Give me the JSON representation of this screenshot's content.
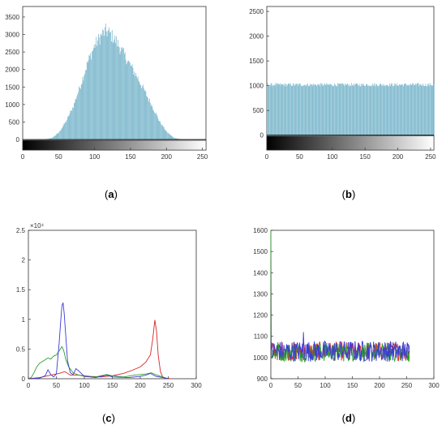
{
  "chart_data": [
    {
      "id": "a",
      "type": "bar",
      "caption": "a",
      "colorbar": true,
      "bar_color": "#73b3c9",
      "xlim": [
        0,
        255
      ],
      "ylim": [
        -300,
        3800
      ],
      "xticks": [
        0,
        50,
        100,
        150,
        200,
        250
      ],
      "yticks": [
        0,
        500,
        1000,
        1500,
        2000,
        2500,
        3000,
        3500
      ],
      "profile": [
        [
          0,
          0
        ],
        [
          20,
          0
        ],
        [
          30,
          5
        ],
        [
          40,
          40
        ],
        [
          50,
          200
        ],
        [
          60,
          520
        ],
        [
          70,
          950
        ],
        [
          80,
          1550
        ],
        [
          90,
          2200
        ],
        [
          100,
          2700
        ],
        [
          110,
          3000
        ],
        [
          115,
          3100
        ],
        [
          120,
          3050
        ],
        [
          130,
          2800
        ],
        [
          140,
          2450
        ],
        [
          150,
          2100
        ],
        [
          160,
          1750
        ],
        [
          170,
          1350
        ],
        [
          180,
          950
        ],
        [
          190,
          520
        ],
        [
          200,
          220
        ],
        [
          210,
          50
        ],
        [
          220,
          5
        ],
        [
          230,
          0
        ],
        [
          255,
          0
        ]
      ]
    },
    {
      "id": "b",
      "type": "bar",
      "caption": "b",
      "colorbar": true,
      "bar_color": "#73b3c9",
      "xlim": [
        0,
        255
      ],
      "ylim": [
        -300,
        2600
      ],
      "xticks": [
        0,
        50,
        100,
        150,
        200,
        250
      ],
      "yticks": [
        0,
        500,
        1000,
        1500,
        2000,
        2500
      ],
      "profile": [
        [
          0,
          1020
        ],
        [
          255,
          1020
        ]
      ],
      "jitter": 35
    },
    {
      "id": "c",
      "type": "line",
      "caption": "c",
      "xlim": [
        0,
        300
      ],
      "ylim": [
        0,
        25000
      ],
      "xticks": [
        0,
        50,
        100,
        150,
        200,
        250,
        300
      ],
      "yticks": [
        0,
        5000,
        10000,
        15000,
        20000,
        25000
      ],
      "ytick_labels": [
        "0",
        "0.5",
        "1",
        "1.5",
        "2",
        "2.5"
      ],
      "y_multiplier": "×10⁴",
      "series": [
        {
          "color": "#d62728",
          "points": [
            [
              0,
              0
            ],
            [
              20,
              200
            ],
            [
              40,
              600
            ],
            [
              55,
              900
            ],
            [
              65,
              1200
            ],
            [
              75,
              600
            ],
            [
              90,
              600
            ],
            [
              110,
              400
            ],
            [
              130,
              300
            ],
            [
              150,
              500
            ],
            [
              170,
              900
            ],
            [
              185,
              1400
            ],
            [
              200,
              2000
            ],
            [
              210,
              2800
            ],
            [
              218,
              4000
            ],
            [
              222,
              6500
            ],
            [
              226,
              9900
            ],
            [
              229,
              8000
            ],
            [
              232,
              4000
            ],
            [
              236,
              1200
            ],
            [
              240,
              300
            ],
            [
              245,
              50
            ],
            [
              255,
              0
            ]
          ]
        },
        {
          "color": "#2ca02c",
          "points": [
            [
              0,
              0
            ],
            [
              5,
              200
            ],
            [
              10,
              1000
            ],
            [
              15,
              2000
            ],
            [
              20,
              2600
            ],
            [
              25,
              2900
            ],
            [
              30,
              3200
            ],
            [
              35,
              3500
            ],
            [
              40,
              3300
            ],
            [
              45,
              3800
            ],
            [
              50,
              4000
            ],
            [
              55,
              4700
            ],
            [
              60,
              5400
            ],
            [
              63,
              4800
            ],
            [
              67,
              3200
            ],
            [
              72,
              2000
            ],
            [
              80,
              1000
            ],
            [
              90,
              600
            ],
            [
              100,
              400
            ],
            [
              120,
              300
            ],
            [
              140,
              700
            ],
            [
              150,
              500
            ],
            [
              170,
              300
            ],
            [
              190,
              600
            ],
            [
              210,
              800
            ],
            [
              220,
              1000
            ],
            [
              230,
              600
            ],
            [
              240,
              300
            ],
            [
              250,
              0
            ]
          ]
        },
        {
          "color": "#3b3bd8",
          "points": [
            [
              0,
              0
            ],
            [
              20,
              100
            ],
            [
              30,
              500
            ],
            [
              35,
              1500
            ],
            [
              40,
              700
            ],
            [
              45,
              300
            ],
            [
              50,
              800
            ],
            [
              55,
              6000
            ],
            [
              58,
              10000
            ],
            [
              60,
              12300
            ],
            [
              62,
              12800
            ],
            [
              64,
              11000
            ],
            [
              67,
              7000
            ],
            [
              70,
              3000
            ],
            [
              75,
              1000
            ],
            [
              80,
              700
            ],
            [
              85,
              1700
            ],
            [
              90,
              1300
            ],
            [
              100,
              400
            ],
            [
              120,
              200
            ],
            [
              140,
              600
            ],
            [
              150,
              300
            ],
            [
              180,
              200
            ],
            [
              200,
              400
            ],
            [
              210,
              600
            ],
            [
              218,
              900
            ],
            [
              222,
              700
            ],
            [
              228,
              400
            ],
            [
              240,
              200
            ],
            [
              250,
              0
            ]
          ]
        }
      ]
    },
    {
      "id": "d",
      "type": "line",
      "caption": "d",
      "xlim": [
        0,
        300
      ],
      "ylim": [
        900,
        1600
      ],
      "xticks": [
        0,
        50,
        100,
        150,
        200,
        250,
        300
      ],
      "yticks": [
        900,
        1000,
        1100,
        1200,
        1300,
        1400,
        1500,
        1600
      ],
      "series": [
        {
          "color": "#d62728",
          "base": 1030,
          "jitter": 45
        },
        {
          "color": "#2ca02c",
          "base": 1025,
          "jitter": 45,
          "spike": [
            0,
            1600
          ]
        },
        {
          "color": "#3b3bd8",
          "base": 1030,
          "jitter": 50,
          "spike": [
            60,
            1120
          ]
        }
      ]
    }
  ]
}
